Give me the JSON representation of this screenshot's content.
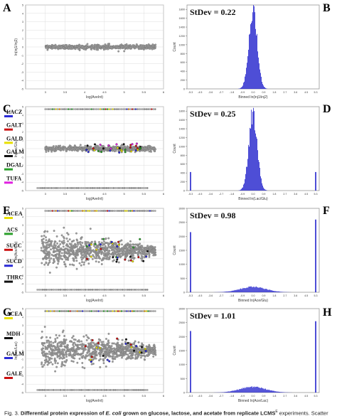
{
  "panel_letters": [
    "A",
    "B",
    "C",
    "D",
    "E",
    "F",
    "G",
    "H"
  ],
  "colors": {
    "point": "#9a9a9a",
    "histogram": "#2222cc",
    "gridline": "#dddddd"
  },
  "caption": {
    "bold": "Differential protein expression of ",
    "italic": "E. coli",
    "bold2": " grown on glucose, lactose, and acetate from replicate LCMS",
    "sup": "E",
    "rest": " experiments. Scatter",
    "prefix": "Fig. 3."
  },
  "chart_data": [
    {
      "panel": "A",
      "type": "scatter",
      "xlabel": "log(AveInt)",
      "ylabel": "ln(inj1/inj2)",
      "xticks": [
        "3",
        "3.5",
        "4",
        "4.5",
        "5",
        "5.5",
        "6"
      ],
      "yticks": [
        "5",
        "4",
        "3",
        "2",
        "1",
        "0",
        "-1",
        "-2",
        "-3",
        "-4",
        "-5"
      ],
      "xlim": [
        2.5,
        6
      ],
      "ylim": [
        -5,
        5
      ],
      "cloud": {
        "x_range": [
          3.0,
          5.8
        ],
        "y_center": 0,
        "y_spread": 0.25
      },
      "labels": []
    },
    {
      "panel": "B",
      "type": "bar",
      "stdev_label": "StDev = 0.22",
      "xlabel": "Binned ln(inj1/inj2)",
      "ylabel": "Count",
      "xticks": [
        "-5.3",
        "-4.5",
        "-3.6",
        "-2.7",
        "-1.8",
        "-0.9",
        "0.0",
        "0.9",
        "1.8",
        "2.7",
        "3.6",
        "4.5",
        "5.3"
      ],
      "yticks": [
        "0",
        "200",
        "400",
        "600",
        "800",
        "1000",
        "1200",
        "1400",
        "1600",
        "1800"
      ],
      "ylim": [
        0,
        1900
      ],
      "center_sd_bins": [
        0.35,
        1.5,
        1800
      ],
      "edge_bars": []
    },
    {
      "panel": "C",
      "type": "scatter",
      "xlabel": "log(AveInt)",
      "ylabel": "ln(Lac/Glu)",
      "xticks": [
        "3",
        "3.5",
        "4",
        "4.5",
        "5",
        "5.5",
        "6"
      ],
      "yticks": [
        "5",
        "4",
        "3",
        "2",
        "1",
        "0",
        "-1",
        "-2",
        "-3",
        "-4",
        "-5"
      ],
      "xlim": [
        2.5,
        6
      ],
      "ylim": [
        -5,
        5
      ],
      "cloud": {
        "x_range": [
          3.0,
          5.8
        ],
        "y_center": 0,
        "y_spread": 0.3
      },
      "labels": [
        "LACZ",
        "GALT",
        "GALD",
        "GALM",
        "DGAL",
        "TUFA"
      ],
      "label_colors": [
        "#2b2bd6",
        "#cc1111",
        "#e8e000",
        "#111111",
        "#2aa02a",
        "#e020e0"
      ]
    },
    {
      "panel": "D",
      "type": "bar",
      "stdev_label": "StDev = 0.25",
      "xlabel": "Binned ln(Lac/Glu)",
      "ylabel": "Count",
      "xticks": [
        "-5.3",
        "-4.5",
        "-3.6",
        "-2.7",
        "-1.8",
        "-0.9",
        "0.0",
        "0.9",
        "1.8",
        "2.7",
        "3.6",
        "4.5",
        "5.3"
      ],
      "yticks": [
        "0",
        "200",
        "400",
        "600",
        "800",
        "1000",
        "1200",
        "1400",
        "1600",
        "1800"
      ],
      "ylim": [
        0,
        1900
      ],
      "center_sd_bins": [
        0.35,
        1.5,
        1750
      ],
      "edge_bars": [
        {
          "x": -5.3,
          "count": 420
        },
        {
          "x": 5.3,
          "count": 420
        }
      ]
    },
    {
      "panel": "E",
      "type": "scatter",
      "xlabel": "log(AveInt)",
      "ylabel": "ln(Ace/Glu)",
      "xticks": [
        "3",
        "3.5",
        "4",
        "4.5",
        "5",
        "5.5",
        "6"
      ],
      "yticks": [
        "5",
        "4",
        "3",
        "2",
        "1",
        "0",
        "-1",
        "-2",
        "-3",
        "-4",
        "-5"
      ],
      "xlim": [
        2.5,
        6
      ],
      "ylim": [
        -5,
        5
      ],
      "cloud": {
        "x_range": [
          2.9,
          5.8
        ],
        "y_center": 0,
        "y_spread": 1.5
      },
      "labels": [
        "ACEA",
        "ACS",
        "SUCC",
        "SUCD",
        "THRC"
      ],
      "label_colors": [
        "#e8e000",
        "#2aa02a",
        "#cc1111",
        "#2b2bd6",
        "#111111"
      ]
    },
    {
      "panel": "F",
      "type": "bar",
      "stdev_label": "StDev = 0.98",
      "xlabel": "Binned ln(Ace/Glu)",
      "ylabel": "Count",
      "xticks": [
        "-5.3",
        "-4.5",
        "-3.6",
        "-2.7",
        "-1.8",
        "-0.9",
        "0.0",
        "0.9",
        "1.8",
        "2.7",
        "3.6",
        "4.5",
        "5.3"
      ],
      "yticks": [
        "0",
        "500",
        "1000",
        "1500",
        "2000",
        "2500",
        "3000"
      ],
      "ylim": [
        0,
        3000
      ],
      "center_sd_bins": [
        1.1,
        0.15,
        190
      ],
      "edge_bars": [
        {
          "x": -5.3,
          "count": 2150
        },
        {
          "x": 5.3,
          "count": 2600
        }
      ]
    },
    {
      "panel": "G",
      "type": "scatter",
      "xlabel": "log(AveInt)",
      "ylabel": "ln(Ace/Lac)",
      "xticks": [
        "3",
        "3.5",
        "4",
        "4.5",
        "5",
        "5.5",
        "6"
      ],
      "yticks": [
        "5",
        "4",
        "3",
        "2",
        "1",
        "0",
        "-1",
        "-2",
        "-3",
        "-4",
        "-5"
      ],
      "xlim": [
        2.5,
        6
      ],
      "ylim": [
        -5,
        5
      ],
      "cloud": {
        "x_range": [
          2.9,
          5.8
        ],
        "y_center": 0,
        "y_spread": 1.6
      },
      "labels": [
        "ACEA",
        "MDH",
        "GALM",
        "GALE"
      ],
      "label_colors": [
        "#e8e000",
        "#111111",
        "#2b2bd6",
        "#cc1111"
      ]
    },
    {
      "panel": "H",
      "type": "bar",
      "stdev_label": "StDev = 1.01",
      "xlabel": "Binned ln(Ace/Lac)",
      "ylabel": "Count",
      "xticks": [
        "-5.3",
        "-4.5",
        "-3.6",
        "-2.7",
        "-1.8",
        "-0.9",
        "0.0",
        "0.9",
        "1.8",
        "2.7",
        "3.6",
        "4.5",
        "5.3"
      ],
      "yticks": [
        "0",
        "500",
        "1000",
        "1500",
        "2000",
        "2500",
        "3000"
      ],
      "ylim": [
        0,
        3000
      ],
      "center_sd_bins": [
        1.1,
        0.15,
        200
      ],
      "edge_bars": [
        {
          "x": -5.3,
          "count": 2200
        },
        {
          "x": 5.3,
          "count": 2550
        }
      ]
    }
  ]
}
